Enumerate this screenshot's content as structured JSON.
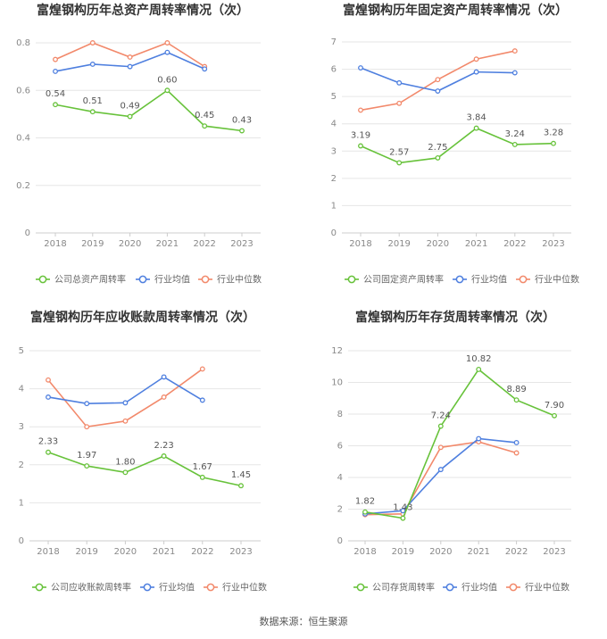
{
  "source": "数据来源：恒生聚源",
  "legend_labels": [
    "行业均值",
    "行业中位数"
  ],
  "colors": {
    "company": "#67c23a",
    "avg": "#4e7fdf",
    "median": "#f2896b",
    "grid": "#e6e6e6",
    "axis": "#cccccc"
  },
  "chart_data": [
    {
      "type": "line",
      "title": "富煌钢构历年总资产周转率情况（次）",
      "categories": [
        "2018",
        "2019",
        "2020",
        "2021",
        "2022",
        "2023"
      ],
      "ylim": [
        0,
        0.8
      ],
      "yticks": [
        "0",
        "0.2",
        "0.4",
        "0.6",
        "0.8"
      ],
      "series": [
        {
          "name": "公司总资产周转率",
          "values": [
            0.54,
            0.51,
            0.49,
            0.6,
            0.45,
            0.43
          ],
          "labels": [
            "0.54",
            "0.51",
            "0.49",
            "0.60",
            "0.45",
            "0.43"
          ]
        },
        {
          "name": "行业均值",
          "values": [
            0.68,
            0.71,
            0.7,
            0.76,
            0.69,
            null
          ]
        },
        {
          "name": "行业中位数",
          "values": [
            0.73,
            0.8,
            0.74,
            0.8,
            0.7,
            null
          ]
        }
      ]
    },
    {
      "type": "line",
      "title": "富煌钢构历年固定资产周转率情况（次）",
      "categories": [
        "2018",
        "2019",
        "2020",
        "2021",
        "2022",
        "2023"
      ],
      "ylim": [
        0,
        7
      ],
      "yticks": [
        "0",
        "1",
        "2",
        "3",
        "4",
        "5",
        "6",
        "7"
      ],
      "series": [
        {
          "name": "公司固定资产周转率",
          "values": [
            3.19,
            2.57,
            2.75,
            3.84,
            3.24,
            3.28
          ],
          "labels": [
            "3.19",
            "2.57",
            "2.75",
            "3.84",
            "3.24",
            "3.28"
          ]
        },
        {
          "name": "行业均值",
          "values": [
            6.05,
            5.5,
            5.2,
            5.9,
            5.87,
            null
          ]
        },
        {
          "name": "行业中位数",
          "values": [
            4.5,
            4.75,
            5.62,
            6.37,
            6.67,
            null
          ]
        }
      ]
    },
    {
      "type": "line",
      "title": "富煌钢构历年应收账款周转率情况（次）",
      "categories": [
        "2018",
        "2019",
        "2020",
        "2021",
        "2022",
        "2023"
      ],
      "ylim": [
        0,
        5
      ],
      "yticks": [
        "0",
        "1",
        "2",
        "3",
        "4",
        "5"
      ],
      "series": [
        {
          "name": "公司应收账款周转率",
          "values": [
            2.33,
            1.97,
            1.8,
            2.23,
            1.67,
            1.45
          ],
          "labels": [
            "2.33",
            "1.97",
            "1.80",
            "2.23",
            "1.67",
            "1.45"
          ]
        },
        {
          "name": "行业均值",
          "values": [
            3.78,
            3.61,
            3.63,
            4.31,
            3.7,
            null
          ]
        },
        {
          "name": "行业中位数",
          "values": [
            4.23,
            3.0,
            3.15,
            3.78,
            4.52,
            null
          ]
        }
      ]
    },
    {
      "type": "line",
      "title": "富煌钢构历年存货周转率情况（次）",
      "categories": [
        "2018",
        "2019",
        "2020",
        "2021",
        "2022",
        "2023"
      ],
      "ylim": [
        0,
        12
      ],
      "yticks": [
        "0",
        "2",
        "4",
        "6",
        "8",
        "10",
        "12"
      ],
      "series": [
        {
          "name": "公司存货周转率",
          "values": [
            1.82,
            1.43,
            7.24,
            10.82,
            8.89,
            7.9
          ],
          "labels": [
            "1.82",
            "1.43",
            "7.24",
            "10.82",
            "8.89",
            "7.90"
          ]
        },
        {
          "name": "行业均值",
          "values": [
            1.7,
            1.9,
            4.5,
            6.45,
            6.2,
            null
          ]
        },
        {
          "name": "行业中位数",
          "values": [
            1.65,
            1.7,
            5.9,
            6.25,
            5.55,
            null
          ]
        }
      ]
    }
  ]
}
